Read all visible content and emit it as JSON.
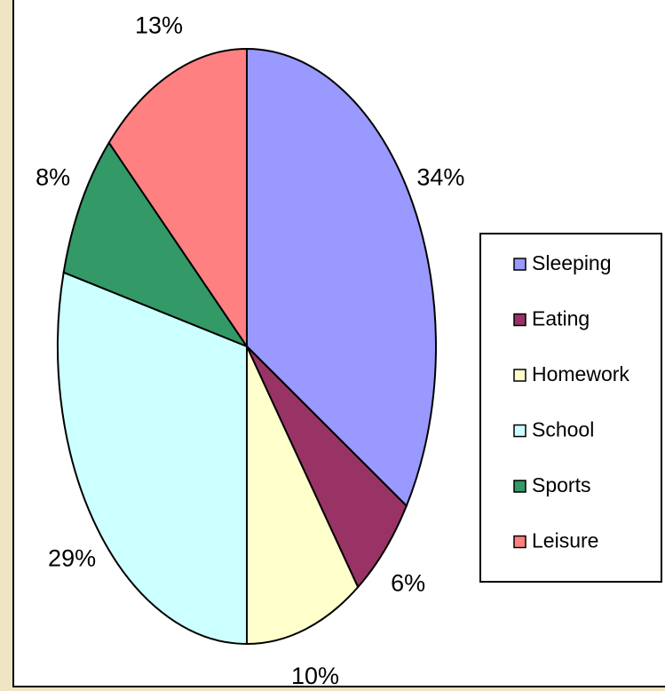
{
  "chart_data": {
    "type": "pie",
    "categories": [
      "Sleeping",
      "Eating",
      "Homework",
      "School",
      "Sports",
      "Leisure"
    ],
    "values": [
      34,
      6,
      10,
      29,
      8,
      13
    ],
    "value_labels": [
      "34%",
      "6%",
      "10%",
      "29%",
      "8%",
      "13%"
    ],
    "colors": [
      "#9999ff",
      "#993366",
      "#ffffcc",
      "#ccffff",
      "#339966",
      "#ff8080"
    ],
    "legend": "right"
  }
}
